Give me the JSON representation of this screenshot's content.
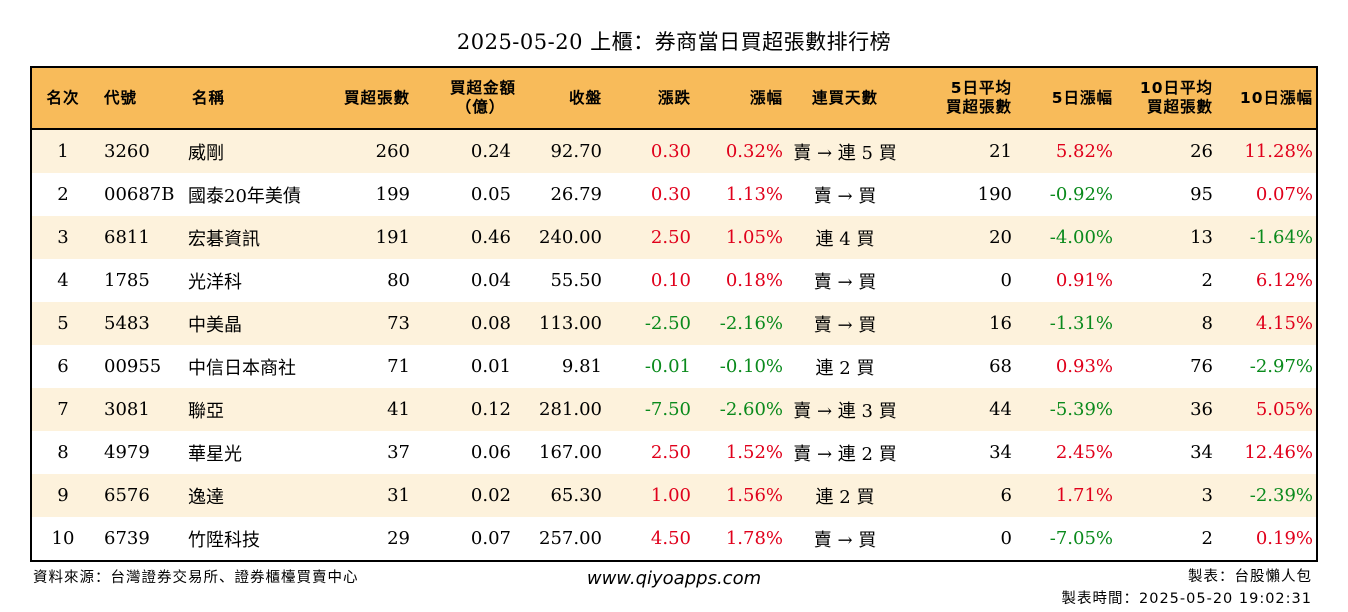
{
  "title": "2025-05-20 上櫃：券商當日買超張數排行榜",
  "headers": {
    "rank": "名次",
    "code": "代號",
    "name": "名稱",
    "net_volume": "買超張數",
    "net_amount_l1": "買超金額",
    "net_amount_l2": "（億）",
    "close": "收盤",
    "change": "漲跌",
    "change_pct": "漲幅",
    "consecutive_days": "連買天數",
    "avg5_l1": "5日平均",
    "avg5_l2": "買超張數",
    "ret5": "5日漲幅",
    "avg10_l1": "10日平均",
    "avg10_l2": "買超張數",
    "ret10": "10日漲幅"
  },
  "rows": [
    {
      "rank": "1",
      "code": "3260",
      "name": "威剛",
      "net_volume": "260",
      "net_amount": "0.24",
      "close": "92.70",
      "change": "0.30",
      "change_dir": "up",
      "change_pct": "0.32%",
      "pct_dir": "up",
      "days": "賣 → 連 5 買",
      "avg5": "21",
      "ret5": "5.82%",
      "ret5_dir": "up",
      "avg10": "26",
      "ret10": "11.28%",
      "ret10_dir": "up"
    },
    {
      "rank": "2",
      "code": "00687B",
      "name": "國泰20年美債",
      "net_volume": "199",
      "net_amount": "0.05",
      "close": "26.79",
      "change": "0.30",
      "change_dir": "up",
      "change_pct": "1.13%",
      "pct_dir": "up",
      "days": "賣 → 買",
      "avg5": "190",
      "ret5": "-0.92%",
      "ret5_dir": "down",
      "avg10": "95",
      "ret10": "0.07%",
      "ret10_dir": "up"
    },
    {
      "rank": "3",
      "code": "6811",
      "name": "宏碁資訊",
      "net_volume": "191",
      "net_amount": "0.46",
      "close": "240.00",
      "change": "2.50",
      "change_dir": "up",
      "change_pct": "1.05%",
      "pct_dir": "up",
      "days": "連 4 買",
      "avg5": "20",
      "ret5": "-4.00%",
      "ret5_dir": "down",
      "avg10": "13",
      "ret10": "-1.64%",
      "ret10_dir": "down"
    },
    {
      "rank": "4",
      "code": "1785",
      "name": "光洋科",
      "net_volume": "80",
      "net_amount": "0.04",
      "close": "55.50",
      "change": "0.10",
      "change_dir": "up",
      "change_pct": "0.18%",
      "pct_dir": "up",
      "days": "賣 → 買",
      "avg5": "0",
      "ret5": "0.91%",
      "ret5_dir": "up",
      "avg10": "2",
      "ret10": "6.12%",
      "ret10_dir": "up"
    },
    {
      "rank": "5",
      "code": "5483",
      "name": "中美晶",
      "net_volume": "73",
      "net_amount": "0.08",
      "close": "113.00",
      "change": "-2.50",
      "change_dir": "down",
      "change_pct": "-2.16%",
      "pct_dir": "down",
      "days": "賣 → 買",
      "avg5": "16",
      "ret5": "-1.31%",
      "ret5_dir": "down",
      "avg10": "8",
      "ret10": "4.15%",
      "ret10_dir": "up"
    },
    {
      "rank": "6",
      "code": "00955",
      "name": "中信日本商社",
      "net_volume": "71",
      "net_amount": "0.01",
      "close": "9.81",
      "change": "-0.01",
      "change_dir": "down",
      "change_pct": "-0.10%",
      "pct_dir": "down",
      "days": "連 2 買",
      "avg5": "68",
      "ret5": "0.93%",
      "ret5_dir": "up",
      "avg10": "76",
      "ret10": "-2.97%",
      "ret10_dir": "down"
    },
    {
      "rank": "7",
      "code": "3081",
      "name": "聯亞",
      "net_volume": "41",
      "net_amount": "0.12",
      "close": "281.00",
      "change": "-7.50",
      "change_dir": "down",
      "change_pct": "-2.60%",
      "pct_dir": "down",
      "days": "賣 → 連 3 買",
      "avg5": "44",
      "ret5": "-5.39%",
      "ret5_dir": "down",
      "avg10": "36",
      "ret10": "5.05%",
      "ret10_dir": "up"
    },
    {
      "rank": "8",
      "code": "4979",
      "name": "華星光",
      "net_volume": "37",
      "net_amount": "0.06",
      "close": "167.00",
      "change": "2.50",
      "change_dir": "up",
      "change_pct": "1.52%",
      "pct_dir": "up",
      "days": "賣 → 連 2 買",
      "avg5": "34",
      "ret5": "2.45%",
      "ret5_dir": "up",
      "avg10": "34",
      "ret10": "12.46%",
      "ret10_dir": "up"
    },
    {
      "rank": "9",
      "code": "6576",
      "name": "逸達",
      "net_volume": "31",
      "net_amount": "0.02",
      "close": "65.30",
      "change": "1.00",
      "change_dir": "up",
      "change_pct": "1.56%",
      "pct_dir": "up",
      "days": "連 2 買",
      "avg5": "6",
      "ret5": "1.71%",
      "ret5_dir": "up",
      "avg10": "3",
      "ret10": "-2.39%",
      "ret10_dir": "down"
    },
    {
      "rank": "10",
      "code": "6739",
      "name": "竹陞科技",
      "net_volume": "29",
      "net_amount": "0.07",
      "close": "257.00",
      "change": "4.50",
      "change_dir": "up",
      "change_pct": "1.78%",
      "pct_dir": "up",
      "days": "賣 → 買",
      "avg5": "0",
      "ret5": "-7.05%",
      "ret5_dir": "down",
      "avg10": "2",
      "ret10": "0.19%",
      "ret10_dir": "up"
    }
  ],
  "colors": {
    "header_bg": "#f8bb5a",
    "odd_row_bg": "#fdf2dc",
    "up": "#e0001b",
    "down": "#0a8a1c"
  },
  "footer": {
    "source": "資料來源：台灣證券交易所、證券櫃檯買賣中心",
    "site": "www.qiyoapps.com",
    "author": "製表：台股懶人包",
    "made_time": "製表時間：2025-05-20 19:02:31"
  }
}
